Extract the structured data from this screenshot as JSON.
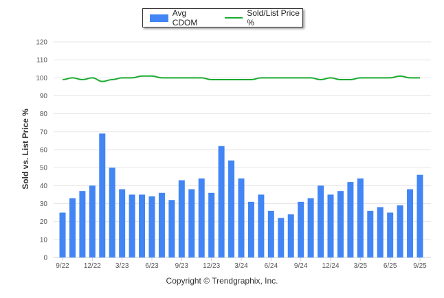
{
  "chart_data": {
    "type": "bar",
    "ylabel": "Sold vs. List Price %",
    "ylim": [
      0,
      120
    ],
    "yticks": [
      "0",
      "10",
      "20",
      "30",
      "40",
      "50",
      "60",
      "70",
      "80",
      "90",
      "100",
      "110",
      "120"
    ],
    "xtick_labels": [
      "9/22",
      "12/22",
      "3/23",
      "6/23",
      "9/23",
      "12/23",
      "3/24",
      "6/24",
      "9/24",
      "12/24",
      "3/25",
      "6/25",
      "9/25"
    ],
    "series": [
      {
        "name": "Avg CDOM",
        "type": "bar",
        "color": "#4285f4",
        "values": [
          25,
          33,
          37,
          40,
          69,
          50,
          38,
          35,
          35,
          34,
          36,
          32,
          43,
          38,
          44,
          36,
          62,
          54,
          44,
          31,
          35,
          26,
          22,
          24,
          31,
          33,
          40,
          35,
          37,
          42,
          44,
          26,
          28,
          25,
          29,
          38,
          46
        ]
      },
      {
        "name": "Sold/List Price %",
        "type": "line",
        "color": "#1aaa2e",
        "values": [
          99,
          100,
          99,
          100,
          98,
          99,
          100,
          100,
          101,
          101,
          100,
          100,
          100,
          100,
          100,
          99,
          99,
          99,
          99,
          99,
          100,
          100,
          100,
          100,
          100,
          100,
          99,
          100,
          99,
          99,
          100,
          100,
          100,
          100,
          101,
          100,
          100
        ]
      }
    ],
    "legend": "top-center"
  },
  "footer": {
    "copyright": "Copyright © Trendgraphix, Inc."
  }
}
